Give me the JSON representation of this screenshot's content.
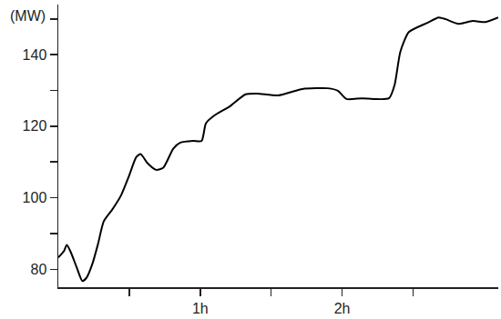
{
  "chart_data": {
    "type": "line",
    "y_label": "(MW)",
    "color": "#000000",
    "grid": false,
    "x": [
      0,
      0.04,
      0.06,
      0.09,
      0.13,
      0.17,
      0.2,
      0.24,
      0.28,
      0.32,
      0.38,
      0.44,
      0.5,
      0.55,
      0.58,
      0.63,
      0.69,
      0.74,
      0.81,
      0.86,
      0.95,
      1.01,
      1.04,
      1.1,
      1.21,
      1.32,
      1.4,
      1.55,
      1.72,
      1.9,
      1.97,
      2.03,
      2.14,
      2.22,
      2.33,
      2.37,
      2.41,
      2.47,
      2.6,
      2.68,
      2.73,
      2.82,
      2.92,
      3.01,
      3.1
    ],
    "values": [
      83.3,
      85.1,
      86.8,
      84.6,
      80.5,
      76.7,
      77.7,
      81.5,
      87.1,
      93.4,
      96.7,
      100.5,
      106.3,
      111.4,
      112.2,
      109.6,
      107.8,
      108.4,
      113.7,
      115.4,
      115.9,
      115.9,
      120.8,
      123.0,
      125.6,
      128.9,
      129.1,
      128.6,
      130.4,
      130.6,
      129.9,
      127.6,
      127.8,
      127.6,
      127.8,
      131.6,
      140.8,
      146.3,
      148.9,
      150.4,
      149.9,
      148.6,
      149.4,
      149.1,
      150.4
    ],
    "xlim": [
      0,
      3.1
    ],
    "xticks": [
      {
        "value": 0.5,
        "label": null
      },
      {
        "value": 1,
        "label": "1h"
      },
      {
        "value": 1.5,
        "label": null
      },
      {
        "value": 2,
        "label": "2h"
      },
      {
        "value": 2.5,
        "label": null
      }
    ],
    "ylim": [
      75,
      154
    ],
    "yticks": [
      80,
      {
        "value": 90,
        "label": null
      },
      100,
      {
        "value": 110,
        "label": null
      },
      120,
      {
        "value": 130,
        "label": null
      },
      140,
      {
        "value": 150,
        "label": null
      }
    ]
  }
}
